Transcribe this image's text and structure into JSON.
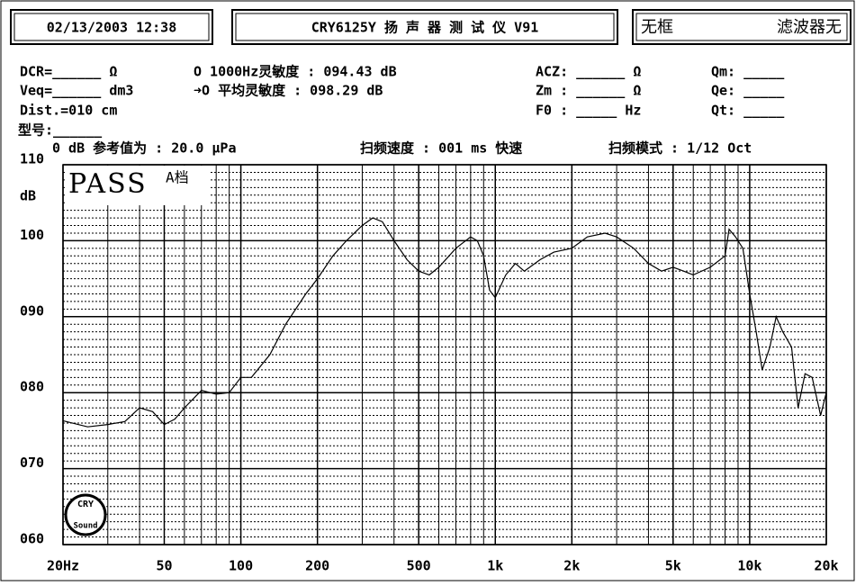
{
  "header": {
    "datetime": "02/13/2003 12:38",
    "instrument": "CRY6125Y 扬 声 器 测 试 仪  V91",
    "frame": "无框",
    "filter": "滤波器无"
  },
  "params": {
    "dcr": "DCR=______ Ω",
    "sens_1k": "O 1000Hz灵敏度 : 094.43 dB",
    "acz": "ACZ: ______ Ω",
    "qm": "Qm: _____",
    "veq": "Veq=______ dm3",
    "sens_avg": "➜O 平均灵敏度 : 098.29 dB",
    "zm": "Zm : ______ Ω",
    "qe": "Qe: _____",
    "dist": "Dist.=010 cm",
    "f0": "F0 : _____ Hz",
    "qt": "Qt: _____",
    "model": "型号:______",
    "reference": "0 dB 参考值为 : 20.0 μPa",
    "speed": "扫频速度 : 001 ms 快速",
    "mode": "扫频模式 : 1/12 Oct"
  },
  "chart_data": {
    "type": "line",
    "ylabel": "dB",
    "badge": "PASS",
    "grade": "A档",
    "logo_top": "CRY",
    "logo_bottom": "Sound",
    "log_x": true,
    "grid": true,
    "color": "#000000",
    "xlim": [
      20,
      20000
    ],
    "xticks": [
      {
        "value": 20,
        "label": "20Hz"
      },
      50,
      100,
      200,
      500,
      {
        "value": 1000,
        "label": "1k"
      },
      {
        "value": 2000,
        "label": "2k"
      },
      {
        "value": 5000,
        "label": "5k"
      },
      {
        "value": 10000,
        "label": "10k"
      },
      {
        "value": 20000,
        "label": "20k"
      }
    ],
    "ylim": [
      60,
      110
    ],
    "yticks": [
      {
        "value": 60,
        "label": "060"
      },
      {
        "value": 70,
        "label": "070"
      },
      {
        "value": 80,
        "label": "080"
      },
      {
        "value": 90,
        "label": "090"
      },
      100,
      110
    ],
    "x": [
      20,
      25,
      30,
      35,
      40,
      45,
      50,
      55,
      60,
      70,
      80,
      90,
      100,
      110,
      130,
      150,
      180,
      200,
      230,
      260,
      300,
      330,
      360,
      400,
      450,
      500,
      550,
      600,
      700,
      800,
      850,
      900,
      950,
      1000,
      1100,
      1200,
      1300,
      1500,
      1700,
      2000,
      2300,
      2700,
      3000,
      3500,
      4000,
      4500,
      5000,
      5500,
      6000,
      7000,
      8000,
      8300,
      8800,
      9400,
      10000,
      10600,
      11200,
      12000,
      12700,
      13500,
      14600,
      15500,
      16500,
      17600,
      19000,
      20000
    ],
    "values": [
      76.3,
      75.5,
      75.8,
      76.2,
      78,
      77.5,
      75.8,
      76.5,
      78,
      80.3,
      79.8,
      80,
      82,
      82,
      85,
      89,
      93,
      95,
      98,
      100,
      102,
      103,
      102.5,
      100,
      97.5,
      96,
      95.5,
      96.5,
      99,
      100.5,
      100,
      98,
      93.5,
      92.5,
      95.5,
      97,
      96,
      97.5,
      98.5,
      99,
      100.5,
      101,
      100.5,
      99,
      97,
      96,
      96.5,
      96,
      95.5,
      96.5,
      98,
      101.5,
      100.5,
      99,
      93,
      88,
      83,
      86,
      90,
      88,
      86,
      78,
      82.5,
      82,
      77,
      80
    ]
  }
}
